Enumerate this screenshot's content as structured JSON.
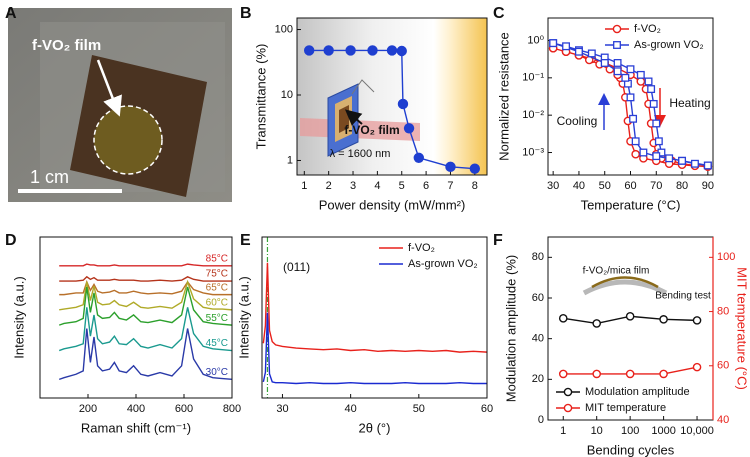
{
  "photo": {
    "panel": "A",
    "label": "f-VO₂ film",
    "scale_bar": "1 cm"
  },
  "chart_data": [
    {
      "panel": "B",
      "type": "line",
      "xlabel": "Power density (mW/mm²)",
      "ylabel": "Transmittance (%)",
      "log_y": true,
      "xlim": [
        0.7,
        8.5
      ],
      "ylim": [
        0.6,
        150
      ],
      "xticks": [
        1,
        2,
        3,
        4,
        5,
        6,
        7,
        8
      ],
      "yticks": [
        1,
        10,
        100
      ],
      "x": [
        1.2,
        2,
        2.9,
        3.8,
        4.6,
        5,
        5.05,
        5.3,
        5.7,
        7,
        8
      ],
      "series": [
        {
          "color": "#1f3fd0",
          "marker": "circle",
          "filled": true,
          "values": [
            48,
            48,
            48,
            48,
            48,
            47,
            7.3,
            3.1,
            1.1,
            0.8,
            0.75
          ]
        }
      ],
      "annotations": [
        "f-VO₂ film",
        "λ = 1600 nm"
      ]
    },
    {
      "panel": "C",
      "type": "line",
      "xlabel": "Temperature (°C)",
      "ylabel": "Normalized resistance",
      "log_y": true,
      "xlim": [
        28,
        92
      ],
      "ylim": [
        0.00025,
        4
      ],
      "xticks": [
        30,
        40,
        50,
        60,
        70,
        80,
        90
      ],
      "yticks": [
        {
          "value": 0.001,
          "label": "10⁻³"
        },
        {
          "value": 0.01,
          "label": "10⁻²"
        },
        {
          "value": 0.1,
          "label": "10⁻¹"
        },
        {
          "value": 1,
          "label": "10⁰"
        }
      ],
      "legend": "upper right",
      "series": [
        {
          "name": "f-VO₂",
          "color": "#e8211b",
          "marker": "circle",
          "filled": false,
          "x": [
            30,
            35,
            40,
            45,
            50,
            55,
            60,
            64,
            66,
            67,
            68,
            69,
            70,
            72,
            76,
            80,
            85,
            90,
            90,
            85,
            80,
            75,
            70,
            65,
            62,
            60,
            59,
            58,
            57,
            56,
            55,
            52,
            48,
            44,
            40,
            35,
            30
          ],
          "values": [
            0.62,
            0.5,
            0.4,
            0.32,
            0.25,
            0.18,
            0.12,
            0.08,
            0.05,
            0.02,
            0.006,
            0.0018,
            0.0009,
            0.0007,
            0.0006,
            0.0005,
            0.00045,
            0.00042,
            0.00042,
            0.00044,
            0.00047,
            0.0005,
            0.0006,
            0.0007,
            0.0009,
            0.002,
            0.007,
            0.03,
            0.07,
            0.1,
            0.12,
            0.17,
            0.23,
            0.3,
            0.4,
            0.5,
            0.62
          ]
        },
        {
          "name": "As-grown VO₂",
          "color": "#2a3fd6",
          "marker": "square",
          "filled": false,
          "x": [
            30,
            35,
            40,
            45,
            50,
            55,
            60,
            64,
            67,
            68,
            69,
            70,
            71,
            72,
            75,
            80,
            85,
            90,
            90,
            80,
            70,
            65,
            62,
            61,
            60,
            59,
            58,
            55,
            50,
            40,
            30
          ],
          "values": [
            0.85,
            0.7,
            0.55,
            0.45,
            0.35,
            0.25,
            0.17,
            0.12,
            0.08,
            0.05,
            0.02,
            0.006,
            0.002,
            0.001,
            0.0007,
            0.0006,
            0.0005,
            0.00045,
            0.00045,
            0.0006,
            0.0008,
            0.001,
            0.002,
            0.008,
            0.03,
            0.07,
            0.1,
            0.15,
            0.25,
            0.5,
            0.85
          ]
        }
      ],
      "annotations": [
        "Cooling",
        "Heating"
      ]
    },
    {
      "panel": "D",
      "type": "line",
      "xlabel": "Raman shift (cm⁻¹)",
      "ylabel": "Intensity (a.u.)",
      "xlim": [
        0,
        800
      ],
      "ylim": [
        0,
        9.5
      ],
      "xticks": [
        200,
        400,
        600,
        800
      ],
      "legend": "inline",
      "x": [
        80,
        100,
        150,
        180,
        195,
        210,
        225,
        240,
        260,
        290,
        310,
        330,
        360,
        390,
        420,
        450,
        500,
        550,
        590,
        615,
        640,
        680,
        720,
        760,
        800
      ],
      "series": [
        {
          "name": "85°C",
          "color": "#d62728",
          "values": [
            7.8,
            7.8,
            7.8,
            7.8,
            7.9,
            7.85,
            7.85,
            7.8,
            7.8,
            7.8,
            7.85,
            7.8,
            7.8,
            7.8,
            7.8,
            7.8,
            7.8,
            7.8,
            7.8,
            7.9,
            7.85,
            7.8,
            7.8,
            7.8,
            7.8
          ]
        },
        {
          "name": "75°C",
          "color": "#b5341b",
          "values": [
            6.9,
            6.9,
            6.9,
            6.95,
            7.15,
            7.0,
            7.1,
            6.95,
            6.95,
            6.95,
            7.0,
            6.95,
            6.95,
            6.95,
            6.9,
            6.9,
            6.95,
            6.9,
            6.95,
            7.15,
            7.0,
            6.9,
            6.9,
            6.9,
            6.9
          ]
        },
        {
          "name": "65°C",
          "color": "#b8702a",
          "values": [
            6.1,
            6.1,
            6.2,
            6.2,
            6.85,
            6.35,
            6.7,
            6.3,
            6.2,
            6.25,
            6.35,
            6.2,
            6.2,
            6.3,
            6.2,
            6.15,
            6.2,
            6.15,
            6.3,
            6.85,
            6.4,
            6.2,
            6.1,
            6.1,
            6.1
          ]
        },
        {
          "name": "60°C",
          "color": "#b0aa28",
          "values": [
            5.2,
            5.25,
            5.35,
            5.5,
            6.85,
            5.75,
            6.6,
            5.65,
            5.5,
            5.55,
            5.75,
            5.5,
            5.4,
            5.65,
            5.35,
            5.3,
            5.4,
            5.3,
            5.65,
            6.85,
            5.85,
            5.35,
            5.25,
            5.25,
            5.2
          ]
        },
        {
          "name": "55°C",
          "color": "#2ca02c",
          "values": [
            4.3,
            4.4,
            4.5,
            4.7,
            6.55,
            5.05,
            6.2,
            4.9,
            4.7,
            4.75,
            5.05,
            4.7,
            4.6,
            4.9,
            4.5,
            4.45,
            4.6,
            4.45,
            4.9,
            6.55,
            5.2,
            4.5,
            4.4,
            4.35,
            4.3
          ]
        },
        {
          "name": "45°C",
          "color": "#1a9a8f",
          "values": [
            2.8,
            2.9,
            3.05,
            3.2,
            5.35,
            3.65,
            4.9,
            3.5,
            3.2,
            3.3,
            3.65,
            3.2,
            3.15,
            3.5,
            3.05,
            2.95,
            3.15,
            2.95,
            3.5,
            5.35,
            3.8,
            3.05,
            2.9,
            2.85,
            2.8
          ]
        },
        {
          "name": "30°C",
          "color": "#2a3aa8",
          "values": [
            1.1,
            1.2,
            1.4,
            1.6,
            4.1,
            2.1,
            3.6,
            1.9,
            1.6,
            1.7,
            2.1,
            1.6,
            1.5,
            1.9,
            1.4,
            1.3,
            1.5,
            1.3,
            1.9,
            4.1,
            2.3,
            1.4,
            1.2,
            1.15,
            1.1
          ]
        }
      ]
    },
    {
      "panel": "E",
      "type": "line",
      "xlabel": "2θ (°)",
      "ylabel": "Intensity (a.u.)",
      "xlim": [
        27,
        60
      ],
      "ylim": [
        0,
        10
      ],
      "xticks": [
        30,
        40,
        50,
        60
      ],
      "legend": "upper right",
      "reference_line": 27.8,
      "reference_color": "#3aa63a",
      "x": [
        27.2,
        27.5,
        27.8,
        28.1,
        28.5,
        29,
        30,
        32,
        34,
        36,
        38,
        40,
        42,
        44,
        46,
        48,
        50,
        52,
        54,
        56,
        58,
        60
      ],
      "series": [
        {
          "name": "f-VO₂",
          "color": "#e8211b",
          "values": [
            3.4,
            4.5,
            8.4,
            4.2,
            3.5,
            3.3,
            3.2,
            3.1,
            3.05,
            3.0,
            3.05,
            2.95,
            3.0,
            2.9,
            2.95,
            2.9,
            2.95,
            2.9,
            2.95,
            2.85,
            2.9,
            2.85
          ]
        },
        {
          "name": "As-grown VO₂",
          "color": "#1a2ad0",
          "values": [
            1.0,
            1.6,
            5.3,
            1.5,
            1.0,
            0.95,
            0.95,
            0.9,
            0.95,
            0.9,
            0.9,
            0.95,
            0.9,
            0.9,
            0.9,
            0.95,
            0.9,
            0.9,
            0.9,
            0.95,
            0.9,
            0.9
          ]
        }
      ],
      "annotations": [
        "(011)"
      ]
    },
    {
      "panel": "F",
      "type": "line",
      "xlabel": "Bending cycles",
      "ylabel": "Modulation amplitude (%)",
      "y2label": "MIT temperature (°C)",
      "log_x": true,
      "xlim": [
        0.35,
        30000
      ],
      "ylim": [
        0,
        90
      ],
      "y2lim": [
        40,
        107.5
      ],
      "xticks": [
        1,
        10,
        100,
        1000,
        {
          "value": 10000,
          "label": "10,000"
        }
      ],
      "yticks": [
        0,
        20,
        40,
        60,
        80
      ],
      "y2ticks": [
        40,
        60,
        80,
        100
      ],
      "legend": "lower left",
      "x": [
        1,
        10,
        100,
        1000,
        10000
      ],
      "series": [
        {
          "name": "Modulation amplitude",
          "color": "#111111",
          "marker": "circle",
          "filled": false,
          "values": [
            50,
            47.5,
            51,
            49.5,
            49
          ]
        },
        {
          "name": "MIT temperature",
          "color": "#e8211b",
          "marker": "circle",
          "filled": false,
          "axis": "y2",
          "values": [
            57,
            57,
            57,
            57,
            59.5
          ]
        }
      ],
      "annotations": [
        "f-VO₂/mica film",
        "Bending test"
      ]
    }
  ]
}
